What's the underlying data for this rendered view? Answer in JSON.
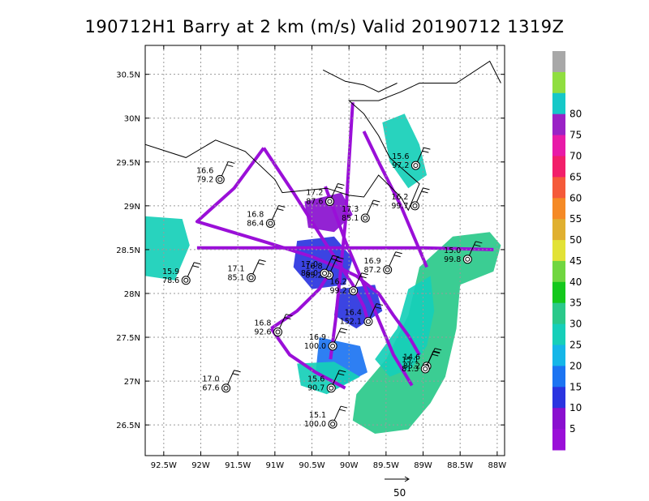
{
  "title": "190712H1 Barry at 2 km (m/s) Valid 20190712 1319Z",
  "chart_data": {
    "type": "scatter",
    "title": "190712H1 Barry at 2 km (m/s) Valid 20190712 1319Z",
    "xlim": [
      -92.75,
      -87.9
    ],
    "ylim": [
      26.15,
      30.83
    ],
    "x_ticks": [
      {
        "value": -92.5,
        "label": "92.5W"
      },
      {
        "value": -92.0,
        "label": "92W"
      },
      {
        "value": -91.5,
        "label": "91.5W"
      },
      {
        "value": -91.0,
        "label": "91W"
      },
      {
        "value": -90.5,
        "label": "90.5W"
      },
      {
        "value": -90.0,
        "label": "90W"
      },
      {
        "value": -89.5,
        "label": "89.5W"
      },
      {
        "value": -89.0,
        "label": "89W"
      },
      {
        "value": -88.5,
        "label": "88.5W"
      },
      {
        "value": -88.0,
        "label": "88W"
      }
    ],
    "y_ticks": [
      {
        "value": 26.5,
        "label": "26.5N"
      },
      {
        "value": 27.0,
        "label": "27N"
      },
      {
        "value": 27.5,
        "label": "27.5N"
      },
      {
        "value": 28.0,
        "label": "28N"
      },
      {
        "value": 28.5,
        "label": "28.5N"
      },
      {
        "value": 29.0,
        "label": "29N"
      },
      {
        "value": 29.5,
        "label": "29.5N"
      },
      {
        "value": 30.0,
        "label": "30N"
      },
      {
        "value": 30.5,
        "label": "30.5N"
      }
    ],
    "grid": true,
    "colorbar": {
      "levels": [
        "",
        "5",
        "10",
        "15",
        "20",
        "25",
        "30",
        "35",
        "40",
        "45",
        "50",
        "55",
        "60",
        "65",
        "70",
        "75",
        "80",
        ""
      ],
      "colors": [
        "#9a0fd8",
        "#8a10cf",
        "#2a34e0",
        "#1c74f2",
        "#15b6e8",
        "#16cfb9",
        "#2ac98a",
        "#14c81c",
        "#70d640",
        "#e2e236",
        "#e0b030",
        "#f58a26",
        "#f55a3a",
        "#f21f6a",
        "#e81aa8",
        "#9a22c6",
        "#16c8c8",
        "#90de40",
        "#a8a8a8"
      ]
    },
    "reference_vector": "50",
    "stations": [
      {
        "lon": -91.74,
        "lat": 29.3,
        "speed": "16.6",
        "pressure": "79.2"
      },
      {
        "lon": -90.26,
        "lat": 29.05,
        "speed": "17.2",
        "pressure": "87.6"
      },
      {
        "lon": -91.06,
        "lat": 28.8,
        "speed": "16.8",
        "pressure": "86.4"
      },
      {
        "lon": -89.78,
        "lat": 28.86,
        "speed": "17.3",
        "pressure": "85.1"
      },
      {
        "lon": -89.1,
        "lat": 29.46,
        "speed": "15.6",
        "pressure": "97.2"
      },
      {
        "lon": -89.11,
        "lat": 29.0,
        "speed": "16.2",
        "pressure": "99.7"
      },
      {
        "lon": -92.2,
        "lat": 28.15,
        "speed": "15.9",
        "pressure": "78.6"
      },
      {
        "lon": -91.32,
        "lat": 28.18,
        "speed": "17.1",
        "pressure": "85.1"
      },
      {
        "lon": -90.27,
        "lat": 28.21,
        "speed": "16.8",
        "pressure": "85.2"
      },
      {
        "lon": -90.33,
        "lat": 28.23,
        "speed": "17.0",
        "pressure": "86.0"
      },
      {
        "lon": -89.48,
        "lat": 28.27,
        "speed": "16.9",
        "pressure": "87.2"
      },
      {
        "lon": -88.4,
        "lat": 28.39,
        "speed": "15.0",
        "pressure": "99.8"
      },
      {
        "lon": -89.94,
        "lat": 28.03,
        "speed": "16.2",
        "pressure": "99.2"
      },
      {
        "lon": -89.74,
        "lat": 27.68,
        "speed": "16.4",
        "pressure": "152.1"
      },
      {
        "lon": -90.96,
        "lat": 27.56,
        "speed": "16.8",
        "pressure": "92.6"
      },
      {
        "lon": -90.22,
        "lat": 27.4,
        "speed": "16.9",
        "pressure": "100.0"
      },
      {
        "lon": -88.95,
        "lat": 27.17,
        "speed": "14.6",
        "pressure": "85.2"
      },
      {
        "lon": -88.97,
        "lat": 27.14,
        "speed": "15.1",
        "pressure": "81.3"
      },
      {
        "lon": -91.66,
        "lat": 26.92,
        "speed": "17.0",
        "pressure": "67.6"
      },
      {
        "lon": -90.24,
        "lat": 26.92,
        "speed": "15.6",
        "pressure": "90.7"
      },
      {
        "lon": -90.22,
        "lat": 26.51,
        "speed": "15.1",
        "pressure": "100.0"
      }
    ],
    "coastline": [
      [
        [
          -92.75,
          29.7
        ],
        [
          -92.2,
          29.55
        ],
        [
          -91.8,
          29.75
        ],
        [
          -91.4,
          29.62
        ],
        [
          -91.0,
          29.3
        ],
        [
          -90.9,
          29.15
        ],
        [
          -90.3,
          29.2
        ],
        [
          -90.0,
          29.12
        ],
        [
          -89.8,
          29.1
        ],
        [
          -89.6,
          29.35
        ],
        [
          -89.3,
          29.1
        ],
        [
          -89.2,
          28.95
        ],
        [
          -89.05,
          29.25
        ],
        [
          -89.25,
          29.4
        ],
        [
          -89.45,
          29.55
        ],
        [
          -89.6,
          29.8
        ],
        [
          -89.8,
          30.05
        ],
        [
          -90.0,
          30.2
        ],
        [
          -89.6,
          30.2
        ],
        [
          -89.3,
          30.3
        ],
        [
          -89.05,
          30.4
        ],
        [
          -88.55,
          30.4
        ],
        [
          -88.1,
          30.65
        ],
        [
          -87.95,
          30.4
        ]
      ],
      [
        [
          -90.35,
          30.55
        ],
        [
          -90.05,
          30.42
        ],
        [
          -89.8,
          30.38
        ],
        [
          -89.6,
          30.3
        ],
        [
          -89.35,
          30.4
        ]
      ]
    ],
    "flight_track": [
      [
        [
          -91.15,
          29.66
        ],
        [
          -91.55,
          29.2
        ],
        [
          -92.05,
          28.82
        ],
        [
          -91.1,
          28.58
        ],
        [
          -90.5,
          28.42
        ],
        [
          -90.1,
          28.28
        ],
        [
          -89.9,
          28.2
        ],
        [
          -89.6,
          28.0
        ],
        [
          -89.4,
          27.75
        ],
        [
          -89.2,
          27.52
        ],
        [
          -89.05,
          27.3
        ]
      ],
      [
        [
          -91.15,
          29.66
        ],
        [
          -90.75,
          29.15
        ],
        [
          -90.3,
          28.55
        ],
        [
          -89.95,
          28.1
        ],
        [
          -89.8,
          27.85
        ],
        [
          -89.75,
          27.7
        ]
      ],
      [
        [
          -92.05,
          28.52
        ],
        [
          -91.0,
          28.52
        ],
        [
          -90.0,
          28.52
        ],
        [
          -89.0,
          28.52
        ],
        [
          -88.05,
          28.5
        ]
      ],
      [
        [
          -89.95,
          30.18
        ],
        [
          -90.0,
          29.5
        ],
        [
          -90.05,
          28.8
        ],
        [
          -90.12,
          28.2
        ],
        [
          -90.18,
          27.7
        ],
        [
          -90.25,
          27.25
        ]
      ],
      [
        [
          -89.8,
          29.85
        ],
        [
          -89.6,
          29.5
        ],
        [
          -89.3,
          29.0
        ],
        [
          -89.1,
          28.6
        ],
        [
          -88.95,
          28.3
        ]
      ],
      [
        [
          -90.32,
          29.22
        ],
        [
          -90.05,
          28.6
        ],
        [
          -89.7,
          27.9
        ],
        [
          -89.4,
          27.3
        ],
        [
          -89.15,
          26.95
        ]
      ],
      [
        [
          -91.05,
          27.6
        ],
        [
          -90.7,
          27.8
        ],
        [
          -90.4,
          28.05
        ],
        [
          -90.25,
          28.25
        ]
      ],
      [
        [
          -91.05,
          27.6
        ],
        [
          -90.8,
          27.3
        ],
        [
          -90.45,
          27.1
        ],
        [
          -90.05,
          26.92
        ]
      ]
    ],
    "swaths": [
      {
        "class": 0,
        "poly": [
          [
            -89.9,
            26.85
          ],
          [
            -89.5,
            27.25
          ],
          [
            -89.2,
            27.75
          ],
          [
            -89.05,
            28.3
          ],
          [
            -88.6,
            28.65
          ],
          [
            -88.1,
            28.7
          ],
          [
            -87.95,
            28.55
          ],
          [
            -88.05,
            28.25
          ],
          [
            -88.5,
            28.1
          ],
          [
            -88.55,
            27.6
          ],
          [
            -88.7,
            27.05
          ],
          [
            -88.9,
            26.75
          ],
          [
            -89.2,
            26.45
          ],
          [
            -89.65,
            26.4
          ],
          [
            -89.95,
            26.55
          ]
        ]
      },
      {
        "class": 1,
        "poly": [
          [
            -89.65,
            27.25
          ],
          [
            -89.35,
            27.6
          ],
          [
            -89.2,
            28.05
          ],
          [
            -88.9,
            28.2
          ],
          [
            -88.85,
            27.8
          ],
          [
            -88.95,
            27.4
          ],
          [
            -89.15,
            27.15
          ],
          [
            -89.45,
            27.05
          ]
        ]
      },
      {
        "class": 2,
        "poly": [
          [
            -90.4,
            27.5
          ],
          [
            -89.85,
            27.4
          ],
          [
            -89.75,
            27.1
          ],
          [
            -90.1,
            26.95
          ],
          [
            -90.45,
            27.1
          ]
        ]
      },
      {
        "class": 1,
        "poly": [
          [
            -90.7,
            27.2
          ],
          [
            -90.2,
            27.22
          ],
          [
            -89.85,
            27.05
          ],
          [
            -90.3,
            26.85
          ],
          [
            -90.65,
            26.95
          ]
        ]
      },
      {
        "class": 3,
        "poly": [
          [
            -90.7,
            28.6
          ],
          [
            -90.2,
            28.65
          ],
          [
            -89.95,
            28.4
          ],
          [
            -90.05,
            28.1
          ],
          [
            -90.5,
            28.05
          ],
          [
            -90.75,
            28.3
          ]
        ]
      },
      {
        "class": 3,
        "poly": [
          [
            -90.15,
            28.05
          ],
          [
            -89.65,
            28.1
          ],
          [
            -89.55,
            27.8
          ],
          [
            -89.9,
            27.6
          ],
          [
            -90.2,
            27.75
          ]
        ]
      },
      {
        "class": 1,
        "poly": [
          [
            -89.55,
            29.95
          ],
          [
            -89.25,
            30.05
          ],
          [
            -89.05,
            29.7
          ],
          [
            -88.95,
            29.35
          ],
          [
            -89.2,
            29.2
          ],
          [
            -89.45,
            29.5
          ]
        ]
      },
      {
        "class": 1,
        "poly": [
          [
            -92.75,
            28.88
          ],
          [
            -92.25,
            28.85
          ],
          [
            -92.15,
            28.55
          ],
          [
            -92.35,
            28.15
          ],
          [
            -92.75,
            28.2
          ]
        ]
      },
      {
        "class": 4,
        "poly": [
          [
            -90.6,
            29.05
          ],
          [
            -90.1,
            29.15
          ],
          [
            -89.95,
            28.9
          ],
          [
            -90.2,
            28.7
          ],
          [
            -90.55,
            28.75
          ]
        ]
      }
    ]
  }
}
